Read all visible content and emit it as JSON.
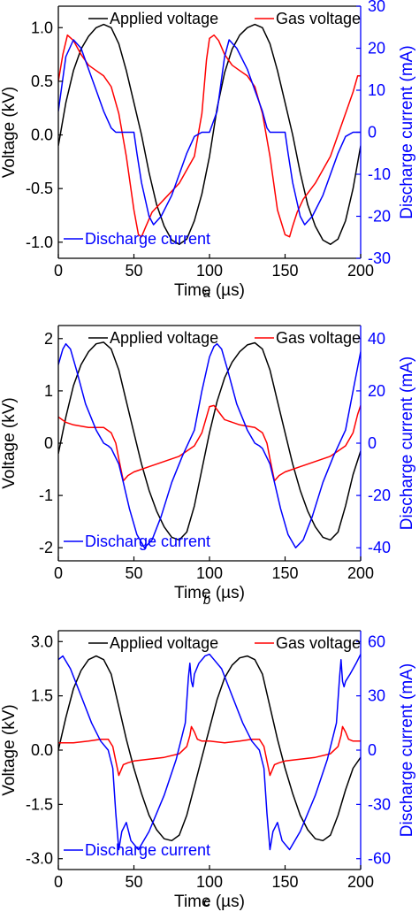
{
  "figure": {
    "panel_labels": [
      "a",
      "b",
      "c"
    ]
  },
  "colors": {
    "applied": "#000000",
    "gas": "#ff0000",
    "current": "#0000ff",
    "axis": "#000000",
    "right_axis": "#0000ff"
  },
  "chart_data": [
    {
      "type": "line",
      "panel": "a",
      "xlabel": "Time (µs)",
      "ylabel": "Voltage (kV)",
      "y2label": "Discharge current (mA)",
      "xlim": [
        0,
        200
      ],
      "ylim": [
        -1.15,
        1.2
      ],
      "y2lim": [
        -30,
        30
      ],
      "xticks": [
        0,
        50,
        100,
        150,
        200
      ],
      "yticks": [
        -1.0,
        -0.5,
        0.0,
        0.5,
        1.0
      ],
      "ytick_labels": [
        "-1.0",
        "-0.5",
        "0.0",
        "0.5",
        "1.0"
      ],
      "y2ticks": [
        -30,
        -20,
        -10,
        0,
        10,
        20,
        30
      ],
      "legend": [
        "Applied voltage",
        "Gas voltage",
        "Discharge current"
      ],
      "series": [
        {
          "name": "Applied voltage",
          "axis": "left",
          "color": "#000000",
          "x": [
            0,
            5,
            10,
            15,
            20,
            25,
            30,
            35,
            40,
            45,
            50,
            55,
            60,
            65,
            70,
            75,
            80,
            85,
            90,
            95,
            100,
            105,
            110,
            115,
            120,
            125,
            130,
            135,
            140,
            145,
            150,
            155,
            160,
            165,
            170,
            175,
            180,
            185,
            190,
            195,
            200
          ],
          "y": [
            -0.1,
            0.3,
            0.6,
            0.8,
            0.92,
            1.0,
            1.03,
            1.0,
            0.85,
            0.6,
            0.3,
            0.0,
            -0.35,
            -0.65,
            -0.85,
            -0.98,
            -1.02,
            -0.97,
            -0.8,
            -0.55,
            -0.2,
            0.25,
            0.58,
            0.8,
            0.93,
            1.0,
            1.03,
            1.0,
            0.85,
            0.6,
            0.3,
            0.0,
            -0.35,
            -0.65,
            -0.85,
            -0.98,
            -1.02,
            -0.97,
            -0.8,
            -0.5,
            -0.1
          ]
        },
        {
          "name": "Gas voltage",
          "axis": "left",
          "color": "#ff0000",
          "x": [
            0,
            3,
            6,
            10,
            15,
            20,
            25,
            30,
            35,
            40,
            45,
            50,
            53,
            55,
            58,
            62,
            70,
            80,
            90,
            95,
            98,
            100,
            103,
            106,
            110,
            115,
            120,
            125,
            130,
            135,
            140,
            145,
            150,
            153,
            155,
            158,
            162,
            170,
            180,
            190,
            195,
            198,
            200
          ],
          "y": [
            0.5,
            0.75,
            0.93,
            0.88,
            0.75,
            0.65,
            0.6,
            0.55,
            0.45,
            0.2,
            -0.2,
            -0.7,
            -0.93,
            -0.95,
            -0.85,
            -0.72,
            -0.6,
            -0.45,
            -0.2,
            0.2,
            0.7,
            0.9,
            0.93,
            0.88,
            0.75,
            0.65,
            0.6,
            0.55,
            0.45,
            0.2,
            -0.2,
            -0.7,
            -0.93,
            -0.95,
            -0.85,
            -0.72,
            -0.6,
            -0.45,
            -0.2,
            0.2,
            0.4,
            0.55,
            0.55
          ]
        },
        {
          "name": "Discharge current",
          "axis": "right",
          "color": "#0000ff",
          "x": [
            0,
            5,
            10,
            15,
            20,
            25,
            30,
            35,
            38,
            40,
            45,
            50,
            52,
            55,
            60,
            63,
            68,
            75,
            85,
            90,
            95,
            100,
            105,
            110,
            113,
            118,
            125,
            130,
            135,
            138,
            140,
            145,
            150,
            152,
            155,
            160,
            163,
            168,
            175,
            185,
            190,
            195,
            200
          ],
          "y": [
            5,
            18,
            22,
            20,
            15,
            10,
            5,
            1,
            0,
            0,
            0,
            0,
            -5,
            -12,
            -20,
            -22,
            -20,
            -15,
            -5,
            -1,
            0,
            0,
            5,
            18,
            22,
            20,
            15,
            10,
            5,
            1,
            0,
            0,
            0,
            -5,
            -12,
            -20,
            -22,
            -20,
            -15,
            -5,
            -1,
            0,
            0
          ]
        }
      ]
    },
    {
      "type": "line",
      "panel": "b",
      "xlabel": "Time (µs)",
      "ylabel": "Voltage (kV)",
      "y2label": "Discharge current (mA)",
      "xlim": [
        0,
        200
      ],
      "ylim": [
        -2.25,
        2.25
      ],
      "y2lim": [
        -45,
        45
      ],
      "xticks": [
        0,
        50,
        100,
        150,
        200
      ],
      "yticks": [
        -2,
        -1,
        0,
        1,
        2
      ],
      "ytick_labels": [
        "-2",
        "-1",
        "0",
        "1",
        "2"
      ],
      "y2ticks": [
        -40,
        -20,
        0,
        20,
        40
      ],
      "legend": [
        "Applied voltage",
        "Gas voltage",
        "Discharge current"
      ],
      "series": [
        {
          "name": "Applied voltage",
          "axis": "left",
          "color": "#000000",
          "x": [
            0,
            5,
            10,
            15,
            20,
            25,
            30,
            35,
            40,
            45,
            50,
            55,
            60,
            65,
            70,
            75,
            80,
            85,
            90,
            95,
            100,
            105,
            110,
            115,
            120,
            125,
            130,
            135,
            140,
            145,
            150,
            155,
            160,
            165,
            170,
            175,
            180,
            185,
            190,
            195,
            200
          ],
          "y": [
            -0.2,
            0.5,
            1.1,
            1.5,
            1.75,
            1.9,
            1.93,
            1.8,
            1.4,
            0.8,
            0.2,
            -0.4,
            -0.9,
            -1.3,
            -1.6,
            -1.8,
            -1.85,
            -1.7,
            -1.2,
            -0.5,
            0.2,
            0.8,
            1.25,
            1.55,
            1.75,
            1.88,
            1.92,
            1.8,
            1.4,
            0.8,
            0.2,
            -0.4,
            -0.9,
            -1.3,
            -1.6,
            -1.8,
            -1.85,
            -1.7,
            -1.2,
            -0.6,
            -0.15
          ]
        },
        {
          "name": "Gas voltage",
          "axis": "left",
          "color": "#ff0000",
          "x": [
            0,
            5,
            10,
            20,
            30,
            35,
            38,
            40,
            43,
            46,
            50,
            60,
            70,
            80,
            90,
            95,
            98,
            100,
            103,
            106,
            110,
            120,
            130,
            135,
            138,
            140,
            143,
            146,
            150,
            160,
            170,
            180,
            190,
            195,
            198,
            200
          ],
          "y": [
            0.5,
            0.4,
            0.35,
            0.3,
            0.3,
            0.2,
            0.0,
            -0.3,
            -0.72,
            -0.62,
            -0.55,
            -0.45,
            -0.35,
            -0.25,
            -0.05,
            0.2,
            0.5,
            0.7,
            0.72,
            0.6,
            0.45,
            0.35,
            0.3,
            0.2,
            0.0,
            -0.3,
            -0.72,
            -0.62,
            -0.55,
            -0.45,
            -0.35,
            -0.25,
            -0.05,
            0.2,
            0.55,
            0.72
          ]
        },
        {
          "name": "Discharge current",
          "axis": "right",
          "color": "#0000ff",
          "x": [
            0,
            3,
            5,
            8,
            12,
            18,
            25,
            30,
            33,
            35,
            40,
            43,
            47,
            52,
            57,
            62,
            68,
            75,
            82,
            90,
            95,
            100,
            103,
            105,
            108,
            112,
            118,
            125,
            130,
            133,
            135,
            140,
            143,
            147,
            152,
            157,
            162,
            168,
            175,
            182,
            190,
            195,
            200
          ],
          "y": [
            30,
            36,
            38,
            36,
            28,
            15,
            5,
            0,
            -1,
            -2,
            -8,
            -15,
            -25,
            -35,
            -40,
            -37,
            -28,
            -15,
            -5,
            5,
            20,
            33,
            37,
            38,
            36,
            28,
            15,
            5,
            0,
            -1,
            -2,
            -8,
            -15,
            -25,
            -35,
            -40,
            -37,
            -28,
            -15,
            -5,
            5,
            20,
            35
          ]
        }
      ]
    },
    {
      "type": "line",
      "panel": "c",
      "xlabel": "Time (µs)",
      "ylabel": "Voltage (kV)",
      "y2label": "Discharge current (mA)",
      "xlim": [
        0,
        200
      ],
      "ylim": [
        -3.3,
        3.3
      ],
      "y2lim": [
        -66,
        66
      ],
      "xticks": [
        0,
        50,
        100,
        150,
        200
      ],
      "yticks": [
        -3.0,
        -1.5,
        0.0,
        1.5,
        3.0
      ],
      "ytick_labels": [
        "-3.0",
        "-1.5",
        "0.0",
        "1.5",
        "3.0"
      ],
      "y2ticks": [
        -60,
        -30,
        0,
        30,
        60
      ],
      "legend": [
        "Applied voltage",
        "Gas voltage",
        "Discharge current"
      ],
      "series": [
        {
          "name": "Applied voltage",
          "axis": "left",
          "color": "#000000",
          "x": [
            0,
            5,
            10,
            15,
            20,
            25,
            30,
            35,
            40,
            45,
            50,
            55,
            60,
            65,
            70,
            75,
            80,
            85,
            90,
            95,
            100,
            105,
            110,
            115,
            120,
            125,
            130,
            135,
            140,
            145,
            150,
            155,
            160,
            165,
            170,
            175,
            180,
            185,
            190,
            195,
            200
          ],
          "y": [
            0.0,
            0.9,
            1.7,
            2.2,
            2.5,
            2.6,
            2.5,
            2.1,
            1.2,
            0.3,
            -0.5,
            -1.2,
            -1.8,
            -2.2,
            -2.45,
            -2.5,
            -2.35,
            -1.8,
            -1.0,
            -0.2,
            0.6,
            1.4,
            2.0,
            2.35,
            2.55,
            2.6,
            2.5,
            2.1,
            1.2,
            0.3,
            -0.5,
            -1.2,
            -1.8,
            -2.2,
            -2.45,
            -2.5,
            -2.35,
            -1.8,
            -1.1,
            -0.5,
            -0.2
          ]
        },
        {
          "name": "Gas voltage",
          "axis": "left",
          "color": "#ff0000",
          "x": [
            0,
            10,
            20,
            28,
            33,
            36,
            38,
            40,
            43,
            46,
            50,
            60,
            70,
            80,
            85,
            87,
            88,
            90,
            92,
            95,
            100,
            110,
            120,
            128,
            133,
            136,
            138,
            140,
            143,
            146,
            150,
            160,
            170,
            180,
            185,
            187,
            188,
            190,
            192,
            195,
            200
          ],
          "y": [
            0.2,
            0.2,
            0.25,
            0.3,
            0.3,
            0.1,
            -0.3,
            -0.7,
            -0.4,
            -0.35,
            -0.3,
            -0.25,
            -0.2,
            -0.1,
            0.1,
            0.4,
            0.65,
            0.5,
            0.3,
            0.25,
            0.25,
            0.2,
            0.25,
            0.3,
            0.3,
            0.1,
            -0.3,
            -0.7,
            -0.4,
            -0.35,
            -0.3,
            -0.25,
            -0.2,
            -0.1,
            0.1,
            0.4,
            0.65,
            0.5,
            0.3,
            0.25,
            0.25
          ]
        },
        {
          "name": "Discharge current",
          "axis": "right",
          "color": "#0000ff",
          "x": [
            0,
            3,
            8,
            15,
            22,
            28,
            33,
            36,
            38,
            40,
            42,
            45,
            48,
            53,
            60,
            70,
            78,
            84,
            86,
            87,
            88,
            89,
            90,
            93,
            97,
            100,
            103,
            108,
            115,
            122,
            128,
            133,
            136,
            138,
            140,
            142,
            145,
            148,
            153,
            160,
            170,
            178,
            184,
            186,
            187,
            188,
            189,
            190,
            193,
            197,
            200
          ],
          "y": [
            50,
            52,
            45,
            30,
            15,
            5,
            0,
            -10,
            -35,
            -55,
            -45,
            -40,
            -50,
            -55,
            -45,
            -25,
            -5,
            15,
            40,
            48,
            38,
            35,
            42,
            48,
            52,
            53,
            50,
            45,
            30,
            15,
            5,
            0,
            -10,
            -35,
            -55,
            -45,
            -40,
            -50,
            -55,
            -45,
            -25,
            -5,
            15,
            40,
            50,
            38,
            35,
            38,
            42,
            48,
            53
          ]
        }
      ]
    }
  ]
}
